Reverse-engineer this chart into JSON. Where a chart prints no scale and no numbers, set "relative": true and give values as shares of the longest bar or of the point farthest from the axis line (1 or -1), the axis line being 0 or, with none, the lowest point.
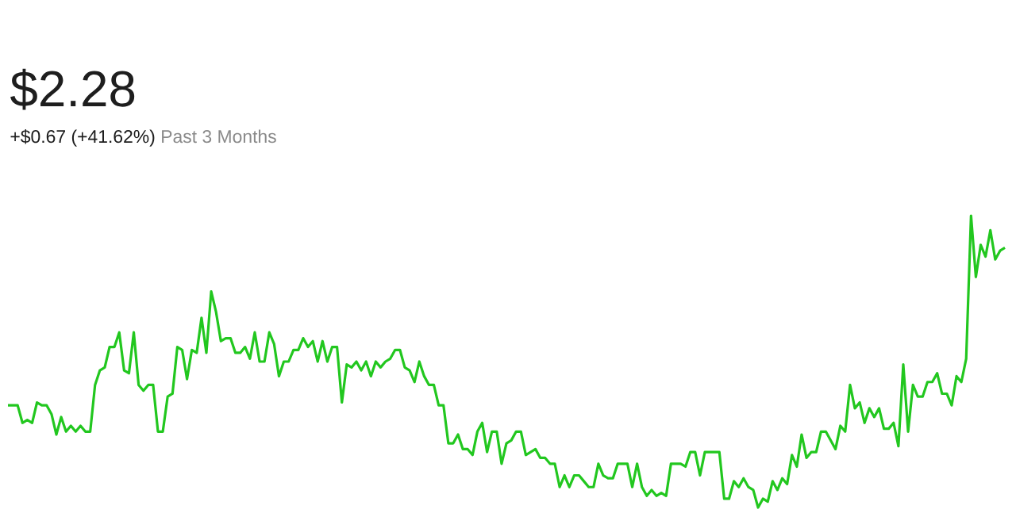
{
  "chart_data": {
    "type": "line",
    "title": "$2.28",
    "subtitle": "+$0.67 (+41.62%)",
    "annotations": [
      "Past 3 Months"
    ],
    "relative": true,
    "color": "#22c71f",
    "categories": [
      null,
      null,
      null,
      null,
      null,
      null,
      null,
      null,
      null,
      null,
      null,
      null,
      null,
      null,
      null,
      null,
      null,
      null,
      null,
      null,
      null,
      null,
      null,
      null,
      null,
      null,
      null,
      null,
      null,
      null,
      null,
      null,
      null,
      null,
      null,
      null,
      null,
      null,
      null,
      null,
      null,
      null,
      null,
      null,
      null,
      null,
      null,
      null,
      null,
      null,
      null,
      null,
      null,
      null,
      null,
      null,
      null,
      null,
      null,
      null,
      null,
      null,
      null,
      null,
      null,
      null,
      null,
      null,
      null,
      null,
      null,
      null,
      null,
      null,
      null,
      null,
      null,
      null,
      null,
      null,
      null,
      null,
      null,
      null,
      null,
      null,
      null,
      null,
      null,
      null,
      null,
      null,
      null,
      null,
      null,
      null,
      null,
      null,
      null,
      null,
      null,
      null,
      null,
      null,
      null,
      null,
      null,
      null,
      null,
      null,
      null,
      null,
      null,
      null,
      null,
      null,
      null,
      null,
      null,
      null,
      null,
      null,
      null,
      null,
      null,
      null,
      null,
      null,
      null,
      null,
      null,
      null,
      null,
      null,
      null,
      null,
      null,
      null,
      null,
      null,
      null,
      null,
      null,
      null,
      null,
      null,
      null,
      null,
      null,
      null,
      null,
      null,
      null,
      null,
      null,
      null,
      null,
      null,
      null,
      null,
      null,
      null,
      null,
      null,
      null,
      null,
      null,
      null,
      null,
      null,
      null,
      null,
      null,
      null,
      null,
      null,
      null,
      null,
      null,
      null,
      null,
      null,
      null,
      null,
      null,
      null,
      null,
      null,
      null,
      null,
      null,
      null,
      null,
      null,
      null,
      null,
      null,
      null,
      null,
      null,
      null,
      null,
      null,
      null,
      null,
      null,
      null
    ],
    "values": [
      0.35,
      0.35,
      0.35,
      0.29,
      0.3,
      0.29,
      0.36,
      0.35,
      0.35,
      0.32,
      0.25,
      0.31,
      0.26,
      0.28,
      0.26,
      0.28,
      0.26,
      0.26,
      0.42,
      0.47,
      0.48,
      0.55,
      0.55,
      0.6,
      0.47,
      0.46,
      0.6,
      0.42,
      0.4,
      0.42,
      0.42,
      0.26,
      0.26,
      0.38,
      0.39,
      0.55,
      0.54,
      0.44,
      0.54,
      0.53,
      0.65,
      0.53,
      0.74,
      0.67,
      0.57,
      0.58,
      0.58,
      0.53,
      0.53,
      0.55,
      0.51,
      0.6,
      0.5,
      0.5,
      0.6,
      0.56,
      0.45,
      0.5,
      0.5,
      0.54,
      0.54,
      0.58,
      0.55,
      0.57,
      0.5,
      0.57,
      0.5,
      0.55,
      0.55,
      0.36,
      0.49,
      0.48,
      0.5,
      0.47,
      0.5,
      0.45,
      0.5,
      0.48,
      0.5,
      0.51,
      0.54,
      0.54,
      0.48,
      0.47,
      0.43,
      0.5,
      0.45,
      0.42,
      0.42,
      0.35,
      0.35,
      0.22,
      0.22,
      0.25,
      0.2,
      0.2,
      0.18,
      0.26,
      0.29,
      0.19,
      0.26,
      0.26,
      0.15,
      0.22,
      0.23,
      0.26,
      0.26,
      0.18,
      0.19,
      0.2,
      0.17,
      0.17,
      0.15,
      0.15,
      0.07,
      0.11,
      0.07,
      0.11,
      0.11,
      0.09,
      0.07,
      0.07,
      0.15,
      0.11,
      0.1,
      0.1,
      0.15,
      0.15,
      0.15,
      0.07,
      0.15,
      0.07,
      0.04,
      0.06,
      0.04,
      0.05,
      0.04,
      0.15,
      0.15,
      0.15,
      0.14,
      0.19,
      0.19,
      0.11,
      0.19,
      0.19,
      0.19,
      0.19,
      0.03,
      0.03,
      0.09,
      0.07,
      0.1,
      0.07,
      0.06,
      0,
      0.03,
      0.02,
      0.09,
      0.06,
      0.1,
      0.08,
      0.18,
      0.14,
      0.25,
      0.17,
      0.19,
      0.19,
      0.26,
      0.26,
      0.23,
      0.2,
      0.28,
      0.26,
      0.42,
      0.34,
      0.36,
      0.29,
      0.34,
      0.31,
      0.34,
      0.27,
      0.27,
      0.29,
      0.21,
      0.49,
      0.26,
      0.42,
      0.38,
      0.38,
      0.43,
      0.43,
      0.46,
      0.39,
      0.39,
      0.35,
      0.45,
      0.43,
      0.51,
      1,
      0.79,
      0.9,
      0.86,
      0.95,
      0.85,
      0.88,
      0.89
    ]
  }
}
